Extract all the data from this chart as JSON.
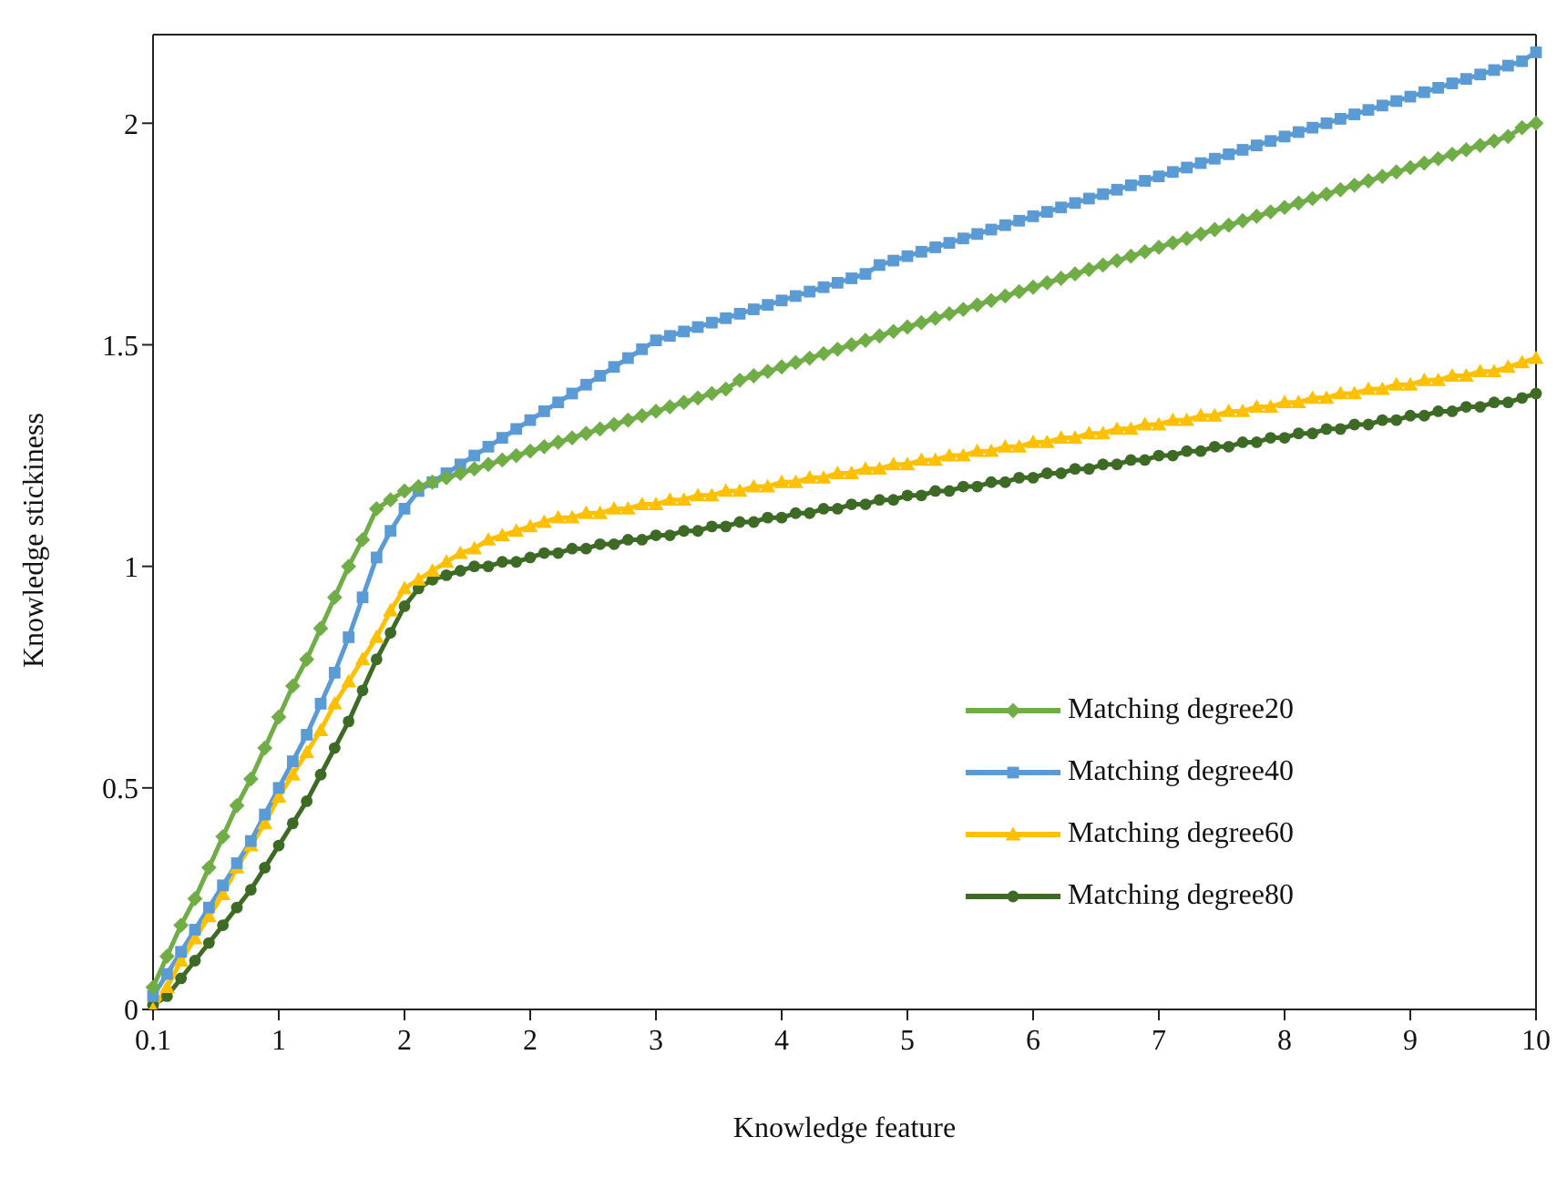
{
  "chart_data": {
    "type": "line",
    "xlabel": "Knowledge feature",
    "ylabel": "Knowledge stickiness",
    "categories": [
      "0.1",
      null,
      null,
      null,
      null,
      null,
      null,
      null,
      null,
      "1",
      null,
      null,
      null,
      null,
      null,
      null,
      null,
      null,
      "2",
      null,
      null,
      null,
      null,
      null,
      null,
      null,
      null,
      "2",
      null,
      null,
      null,
      null,
      null,
      null,
      null,
      null,
      "3",
      null,
      null,
      null,
      null,
      null,
      null,
      null,
      null,
      "4",
      null,
      null,
      null,
      null,
      null,
      null,
      null,
      null,
      "5",
      null,
      null,
      null,
      null,
      null,
      null,
      null,
      null,
      "6",
      null,
      null,
      null,
      null,
      null,
      null,
      null,
      null,
      "7",
      null,
      null,
      null,
      null,
      null,
      null,
      null,
      null,
      "8",
      null,
      null,
      null,
      null,
      null,
      null,
      null,
      null,
      "9",
      null,
      null,
      null,
      null,
      null,
      null,
      null,
      null,
      "10"
    ],
    "series": [
      {
        "name": "Matching degree20",
        "color": "#70ad47",
        "marker": "diamond",
        "values": [
          0.05,
          0.12,
          0.19,
          0.25,
          0.32,
          0.39,
          0.46,
          0.52,
          0.59,
          0.66,
          0.73,
          0.79,
          0.86,
          0.93,
          1.0,
          1.06,
          1.13,
          1.15,
          1.17,
          1.18,
          1.19,
          1.2,
          1.21,
          1.22,
          1.23,
          1.24,
          1.25,
          1.26,
          1.27,
          1.28,
          1.29,
          1.3,
          1.31,
          1.32,
          1.33,
          1.34,
          1.35,
          1.36,
          1.37,
          1.38,
          1.39,
          1.4,
          1.42,
          1.43,
          1.44,
          1.45,
          1.46,
          1.47,
          1.48,
          1.49,
          1.5,
          1.51,
          1.52,
          1.53,
          1.54,
          1.55,
          1.56,
          1.57,
          1.58,
          1.59,
          1.6,
          1.61,
          1.62,
          1.63,
          1.64,
          1.65,
          1.66,
          1.67,
          1.68,
          1.69,
          1.7,
          1.71,
          1.72,
          1.73,
          1.74,
          1.75,
          1.76,
          1.77,
          1.78,
          1.79,
          1.8,
          1.81,
          1.82,
          1.83,
          1.84,
          1.85,
          1.86,
          1.87,
          1.88,
          1.89,
          1.9,
          1.91,
          1.92,
          1.93,
          1.94,
          1.95,
          1.96,
          1.97,
          1.99,
          2.0
        ]
      },
      {
        "name": "Matching degree40",
        "color": "#5b9bd5",
        "marker": "square",
        "values": [
          0.03,
          0.08,
          0.13,
          0.18,
          0.23,
          0.28,
          0.33,
          0.38,
          0.44,
          0.5,
          0.56,
          0.62,
          0.69,
          0.76,
          0.84,
          0.93,
          1.02,
          1.08,
          1.13,
          1.17,
          1.19,
          1.21,
          1.23,
          1.25,
          1.27,
          1.29,
          1.31,
          1.33,
          1.35,
          1.37,
          1.39,
          1.41,
          1.43,
          1.45,
          1.47,
          1.49,
          1.51,
          1.52,
          1.53,
          1.54,
          1.55,
          1.56,
          1.57,
          1.58,
          1.59,
          1.6,
          1.61,
          1.62,
          1.63,
          1.64,
          1.65,
          1.66,
          1.68,
          1.69,
          1.7,
          1.71,
          1.72,
          1.73,
          1.74,
          1.75,
          1.76,
          1.77,
          1.78,
          1.79,
          1.8,
          1.81,
          1.82,
          1.83,
          1.84,
          1.85,
          1.86,
          1.87,
          1.88,
          1.89,
          1.9,
          1.91,
          1.92,
          1.93,
          1.94,
          1.95,
          1.96,
          1.97,
          1.98,
          1.99,
          2.0,
          2.01,
          2.02,
          2.03,
          2.04,
          2.05,
          2.06,
          2.07,
          2.08,
          2.09,
          2.1,
          2.11,
          2.12,
          2.13,
          2.14,
          2.16
        ]
      },
      {
        "name": "Matching degree60",
        "color": "#ffc000",
        "marker": "triangle",
        "values": [
          0.0,
          0.05,
          0.11,
          0.16,
          0.21,
          0.26,
          0.32,
          0.37,
          0.42,
          0.48,
          0.53,
          0.58,
          0.63,
          0.69,
          0.74,
          0.79,
          0.84,
          0.9,
          0.95,
          0.97,
          0.99,
          1.01,
          1.03,
          1.04,
          1.06,
          1.07,
          1.08,
          1.09,
          1.1,
          1.11,
          1.11,
          1.12,
          1.12,
          1.13,
          1.13,
          1.14,
          1.14,
          1.15,
          1.15,
          1.16,
          1.16,
          1.17,
          1.17,
          1.18,
          1.18,
          1.19,
          1.19,
          1.2,
          1.2,
          1.21,
          1.21,
          1.22,
          1.22,
          1.23,
          1.23,
          1.24,
          1.24,
          1.25,
          1.25,
          1.26,
          1.26,
          1.27,
          1.27,
          1.28,
          1.28,
          1.29,
          1.29,
          1.3,
          1.3,
          1.31,
          1.31,
          1.32,
          1.32,
          1.33,
          1.33,
          1.34,
          1.34,
          1.35,
          1.35,
          1.36,
          1.36,
          1.37,
          1.37,
          1.38,
          1.38,
          1.39,
          1.39,
          1.4,
          1.4,
          1.41,
          1.41,
          1.42,
          1.42,
          1.43,
          1.43,
          1.44,
          1.44,
          1.45,
          1.46,
          1.47
        ]
      },
      {
        "name": "Matching degree80",
        "color": "#3d6b26",
        "marker": "circle",
        "values": [
          0.01,
          0.03,
          0.07,
          0.11,
          0.15,
          0.19,
          0.23,
          0.27,
          0.32,
          0.37,
          0.42,
          0.47,
          0.53,
          0.59,
          0.65,
          0.72,
          0.79,
          0.85,
          0.91,
          0.95,
          0.97,
          0.98,
          0.99,
          1.0,
          1.0,
          1.01,
          1.01,
          1.02,
          1.03,
          1.03,
          1.04,
          1.04,
          1.05,
          1.05,
          1.06,
          1.06,
          1.07,
          1.07,
          1.08,
          1.08,
          1.09,
          1.09,
          1.1,
          1.1,
          1.11,
          1.11,
          1.12,
          1.12,
          1.13,
          1.13,
          1.14,
          1.14,
          1.15,
          1.15,
          1.16,
          1.16,
          1.17,
          1.17,
          1.18,
          1.18,
          1.19,
          1.19,
          1.2,
          1.2,
          1.21,
          1.21,
          1.22,
          1.22,
          1.23,
          1.23,
          1.24,
          1.24,
          1.25,
          1.25,
          1.26,
          1.26,
          1.27,
          1.27,
          1.28,
          1.28,
          1.29,
          1.29,
          1.3,
          1.3,
          1.31,
          1.31,
          1.32,
          1.32,
          1.33,
          1.33,
          1.34,
          1.34,
          1.35,
          1.35,
          1.36,
          1.36,
          1.37,
          1.37,
          1.38,
          1.39
        ]
      }
    ],
    "ylim": [
      0,
      2.2
    ],
    "yticks": [
      0,
      0.5,
      1,
      1.5,
      2
    ],
    "grid": false,
    "legend": "right",
    "line_style": "solid"
  }
}
